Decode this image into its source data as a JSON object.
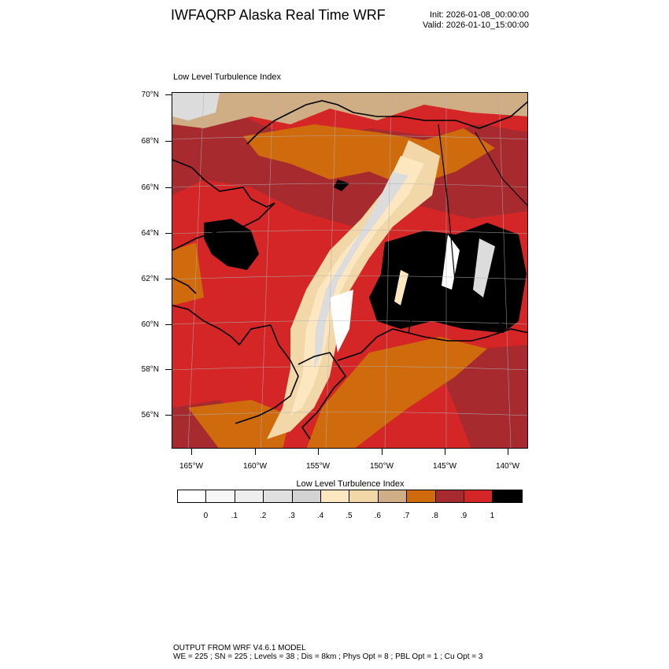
{
  "header": {
    "title": "IWFAQRP Alaska Real Time WRF",
    "init": "Init: 2026-01-08_00:00:00",
    "valid": "Valid: 2026-01-10_15:00:00"
  },
  "map": {
    "subtitle": "Low Level Turbulence Index",
    "lat_labels": [
      "70°N",
      "68°N",
      "66°N",
      "64°N",
      "62°N",
      "60°N",
      "58°N",
      "56°N"
    ],
    "lon_labels": [
      "165°W",
      "160°W",
      "155°W",
      "150°W",
      "145°W",
      "140°W"
    ],
    "field_colors": {
      "black": "#000000",
      "red": "#d42626",
      "dark_red": "#a62a2e",
      "orange": "#cf6a0d",
      "tan": "#cfad85",
      "light_tan": "#f2d8a8",
      "cream": "#fde7c0",
      "light_gray": "#dcdcdc",
      "white": "#ffffff"
    }
  },
  "colorbar": {
    "title": "Low Level Turbulence Index",
    "colors": [
      "#ffffff",
      "#f7f7f7",
      "#eeeeee",
      "#e0e0e0",
      "#d3d3d3",
      "#fde7c0",
      "#f2d8a8",
      "#cfad85",
      "#cf6a0d",
      "#a62a2e",
      "#d42626",
      "#000000"
    ],
    "labels": [
      "0",
      ".1",
      ".2",
      ".3",
      ".4",
      ".5",
      ".6",
      ".7",
      ".8",
      ".9",
      "1"
    ]
  },
  "footer": {
    "line1": "OUTPUT FROM WRF V4.6.1 MODEL",
    "line2": "WE = 225 ; SN = 225 ; Levels = 38 ; Dis = 8km ; Phys Opt = 8 ; PBL Opt = 1 ; Cu Opt = 3"
  }
}
